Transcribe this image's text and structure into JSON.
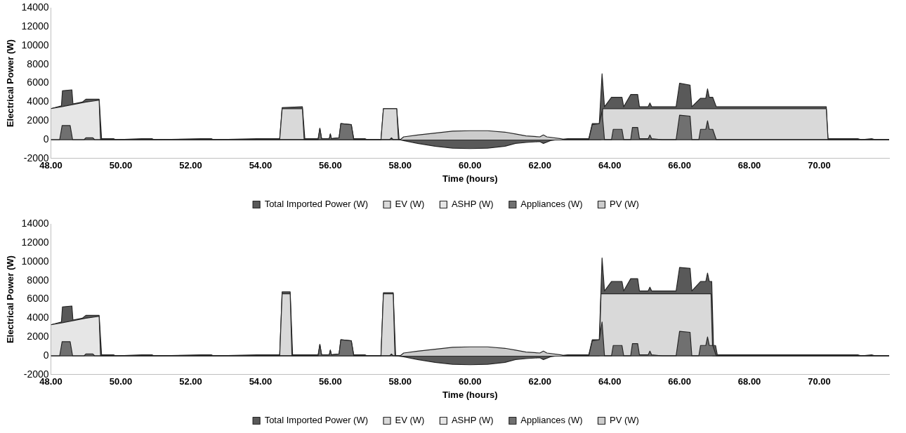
{
  "chart_data": [
    {
      "type": "area",
      "xlabel": "Time (hours)",
      "ylabel": "Electrical Power (W)",
      "xlim": [
        48,
        72
      ],
      "ylim": [
        -2000,
        14000
      ],
      "xticks": [
        {
          "value": 48,
          "label": "48.00"
        },
        {
          "value": 50,
          "label": "50.00"
        },
        {
          "value": 52,
          "label": "52.00"
        },
        {
          "value": 54,
          "label": "54.00"
        },
        {
          "value": 56,
          "label": "56.00"
        },
        {
          "value": 58,
          "label": "58.00"
        },
        {
          "value": 60,
          "label": "60.00"
        },
        {
          "value": 62,
          "label": "62.00"
        },
        {
          "value": 64,
          "label": "64.00"
        },
        {
          "value": 66,
          "label": "66.00"
        },
        {
          "value": 68,
          "label": "68.00"
        },
        {
          "value": 70,
          "label": "70.00"
        }
      ],
      "yticks": [
        -2000,
        0,
        2000,
        4000,
        6000,
        8000,
        10000,
        12000,
        14000
      ],
      "grid": false,
      "legend": "bottom",
      "marker": "none",
      "series": [
        {
          "name": "Total Imported Power (W)",
          "color": "#595959",
          "x": [
            48,
            48.3,
            48.33,
            48.6,
            48.63,
            48.9,
            49.0,
            49.38,
            49.45,
            49.8,
            49.85,
            50.6,
            50.9,
            50.95,
            52.3,
            52.6,
            52.65,
            53.9,
            54.2,
            54.55,
            54.62,
            55.2,
            55.27,
            55.65,
            55.7,
            55.75,
            55.97,
            56.0,
            56.03,
            56.25,
            56.3,
            56.6,
            56.67,
            57.0,
            57.05,
            57.45,
            57.52,
            57.9,
            57.97,
            58.1,
            58.5,
            59.0,
            59.5,
            60.0,
            60.5,
            61.0,
            61.3,
            61.6,
            62.0,
            62.1,
            62.3,
            62.5,
            62.8,
            63.4,
            63.5,
            63.7,
            63.78,
            63.85,
            64.05,
            64.35,
            64.4,
            64.6,
            64.8,
            64.85,
            65.1,
            65.15,
            65.2,
            65.9,
            66.0,
            66.3,
            66.35,
            66.6,
            66.75,
            66.8,
            66.85,
            66.95,
            67.05,
            70.2,
            70.25,
            71.1,
            71.2,
            71.5,
            71.6,
            72
          ],
          "values": [
            3300,
            3600,
            5200,
            5300,
            3800,
            4000,
            4300,
            4300,
            100,
            100,
            0,
            100,
            100,
            0,
            100,
            100,
            0,
            100,
            100,
            100,
            3400,
            3500,
            100,
            100,
            1200,
            100,
            100,
            600,
            100,
            200,
            1700,
            1600,
            100,
            100,
            0,
            0,
            3300,
            3300,
            0,
            -100,
            -400,
            -700,
            -900,
            -950,
            -900,
            -700,
            -400,
            -300,
            -200,
            -400,
            -100,
            0,
            100,
            100,
            1700,
            1700,
            7000,
            3500,
            4500,
            4500,
            3500,
            4800,
            4800,
            3500,
            3500,
            3900,
            3500,
            3500,
            6000,
            5800,
            3500,
            4400,
            4400,
            5400,
            4500,
            4500,
            3500,
            3500,
            100,
            100,
            0,
            100,
            0,
            0
          ]
        },
        {
          "name": "EV (W)",
          "color": "#d9d9d9",
          "x": [
            48,
            54.55,
            54.62,
            55.2,
            55.25,
            57.45,
            57.52,
            57.9,
            57.95,
            63.75,
            63.8,
            70.2,
            70.25,
            72
          ],
          "values": [
            0,
            0,
            3300,
            3300,
            0,
            0,
            3300,
            3300,
            0,
            0,
            3300,
            3300,
            0,
            0
          ]
        },
        {
          "name": "ASHP (W)",
          "color": "#e6e6e6",
          "x": [
            48,
            48.3,
            49.0,
            49.38,
            49.42,
            72
          ],
          "values": [
            3300,
            3500,
            4000,
            4200,
            0,
            0
          ]
        },
        {
          "name": "Appliances (W)",
          "color": "#707070",
          "x": [
            48,
            48.25,
            48.32,
            48.55,
            48.62,
            48.95,
            49.0,
            49.2,
            49.25,
            55.65,
            55.7,
            55.75,
            55.97,
            56.0,
            56.03,
            56.25,
            56.3,
            56.6,
            56.67,
            57.7,
            57.75,
            57.8,
            63.4,
            63.5,
            63.7,
            63.78,
            63.85,
            64.05,
            64.1,
            64.35,
            64.4,
            64.6,
            64.65,
            64.8,
            64.85,
            65.1,
            65.15,
            65.2,
            65.5,
            65.9,
            66.0,
            66.3,
            66.35,
            66.55,
            66.6,
            66.75,
            66.8,
            66.85,
            66.95,
            67.05,
            72
          ],
          "values": [
            0,
            0,
            1500,
            1500,
            0,
            0,
            200,
            200,
            0,
            0,
            1200,
            100,
            100,
            600,
            100,
            200,
            1700,
            1600,
            0,
            0,
            200,
            0,
            0,
            1600,
            1700,
            3000,
            0,
            0,
            1100,
            1100,
            0,
            0,
            1300,
            1300,
            100,
            100,
            500,
            100,
            0,
            0,
            2600,
            2500,
            0,
            0,
            1100,
            1100,
            2000,
            1100,
            1100,
            0,
            0
          ]
        },
        {
          "name": "PV (W)",
          "color": "#cccccc",
          "x": [
            48,
            58.0,
            58.1,
            58.5,
            59.0,
            59.5,
            60.0,
            60.5,
            61.0,
            61.3,
            61.6,
            62.0,
            62.1,
            62.2,
            62.6,
            62.7,
            72
          ],
          "values": [
            0,
            0,
            300,
            500,
            700,
            900,
            950,
            950,
            800,
            600,
            400,
            300,
            500,
            300,
            100,
            0,
            0
          ]
        }
      ]
    },
    {
      "type": "area",
      "xlabel": "Time (hours)",
      "ylabel": "Electrical Power (W)",
      "xlim": [
        48,
        72
      ],
      "ylim": [
        -2000,
        14000
      ],
      "xticks": [
        {
          "value": 48,
          "label": "48.00"
        },
        {
          "value": 50,
          "label": "50.00"
        },
        {
          "value": 52,
          "label": "52.00"
        },
        {
          "value": 54,
          "label": "54.00"
        },
        {
          "value": 56,
          "label": "56.00"
        },
        {
          "value": 58,
          "label": "58.00"
        },
        {
          "value": 60,
          "label": "60.00"
        },
        {
          "value": 62,
          "label": "62.00"
        },
        {
          "value": 64,
          "label": "64.00"
        },
        {
          "value": 66,
          "label": "66.00"
        },
        {
          "value": 68,
          "label": "68.00"
        },
        {
          "value": 70,
          "label": "70.00"
        }
      ],
      "yticks": [
        -2000,
        0,
        2000,
        4000,
        6000,
        8000,
        10000,
        12000,
        14000
      ],
      "grid": false,
      "legend": "bottom",
      "marker": "none",
      "series": [
        {
          "name": "Total Imported Power (W)",
          "color": "#595959",
          "x": [
            48,
            48.3,
            48.33,
            48.6,
            48.63,
            48.9,
            49.0,
            49.38,
            49.45,
            49.8,
            49.85,
            50.6,
            50.9,
            50.95,
            52.3,
            52.6,
            52.65,
            53.9,
            54.2,
            54.55,
            54.62,
            54.85,
            54.92,
            55.65,
            55.7,
            55.75,
            55.97,
            56.0,
            56.03,
            56.25,
            56.3,
            56.6,
            56.67,
            57.0,
            57.05,
            57.45,
            57.52,
            57.8,
            57.87,
            58.1,
            58.5,
            59.0,
            59.5,
            60.0,
            60.5,
            61.0,
            61.3,
            61.6,
            62.0,
            62.1,
            62.3,
            62.5,
            62.8,
            63.4,
            63.5,
            63.7,
            63.78,
            63.85,
            64.05,
            64.35,
            64.4,
            64.6,
            64.8,
            64.85,
            65.1,
            65.15,
            65.2,
            65.9,
            66.0,
            66.3,
            66.35,
            66.6,
            66.75,
            66.8,
            66.85,
            66.92,
            66.97,
            67.03,
            67.08,
            70.2,
            70.3,
            71.1,
            71.2,
            71.5,
            71.6,
            72
          ],
          "values": [
            3300,
            3600,
            5200,
            5300,
            3800,
            4000,
            4300,
            4300,
            100,
            100,
            0,
            100,
            100,
            0,
            100,
            100,
            0,
            100,
            100,
            100,
            6800,
            6800,
            100,
            100,
            1200,
            100,
            100,
            600,
            100,
            200,
            1700,
            1600,
            100,
            100,
            0,
            0,
            6700,
            6700,
            0,
            -100,
            -400,
            -700,
            -900,
            -950,
            -900,
            -700,
            -400,
            -300,
            -200,
            -400,
            -100,
            0,
            100,
            100,
            1700,
            1700,
            10400,
            6900,
            7900,
            7900,
            6900,
            8200,
            8200,
            6900,
            6900,
            7300,
            6900,
            6900,
            9400,
            9300,
            6900,
            7900,
            7900,
            8800,
            7900,
            7900,
            1100,
            1100,
            100,
            100,
            100,
            100,
            0,
            100,
            0,
            0
          ]
        },
        {
          "name": "EV (W)",
          "color": "#d9d9d9",
          "x": [
            48,
            54.55,
            54.62,
            54.85,
            54.9,
            57.45,
            57.52,
            57.8,
            57.85,
            63.7,
            63.75,
            66.9,
            66.95,
            72
          ],
          "values": [
            0,
            0,
            6600,
            6600,
            0,
            0,
            6600,
            6600,
            0,
            0,
            6600,
            6600,
            0,
            0
          ]
        },
        {
          "name": "ASHP (W)",
          "color": "#e6e6e6",
          "x": [
            48,
            48.3,
            49.0,
            49.38,
            49.42,
            72
          ],
          "values": [
            3300,
            3500,
            4000,
            4200,
            0,
            0
          ]
        },
        {
          "name": "Appliances (W)",
          "color": "#707070",
          "x": [
            48,
            48.25,
            48.32,
            48.55,
            48.62,
            48.95,
            49.0,
            49.2,
            49.25,
            55.65,
            55.7,
            55.75,
            55.97,
            56.0,
            56.03,
            56.25,
            56.3,
            56.6,
            56.67,
            57.7,
            57.75,
            57.8,
            63.4,
            63.5,
            63.7,
            63.78,
            63.85,
            64.05,
            64.1,
            64.35,
            64.4,
            64.6,
            64.65,
            64.8,
            64.85,
            65.1,
            65.15,
            65.2,
            65.5,
            65.9,
            66.0,
            66.3,
            66.35,
            66.55,
            66.6,
            66.75,
            66.8,
            66.85,
            66.95,
            67.05,
            72
          ],
          "values": [
            0,
            0,
            1500,
            1500,
            0,
            0,
            200,
            200,
            0,
            0,
            1200,
            100,
            100,
            600,
            100,
            200,
            1700,
            1600,
            0,
            0,
            200,
            0,
            0,
            1600,
            1700,
            3600,
            0,
            0,
            1100,
            1100,
            0,
            0,
            1300,
            1300,
            100,
            100,
            500,
            100,
            0,
            0,
            2600,
            2500,
            0,
            0,
            1100,
            1100,
            2000,
            1100,
            1100,
            0,
            0
          ]
        },
        {
          "name": "PV (W)",
          "color": "#cccccc",
          "x": [
            48,
            58.0,
            58.1,
            58.5,
            59.0,
            59.5,
            60.0,
            60.5,
            61.0,
            61.3,
            61.6,
            62.0,
            62.1,
            62.2,
            62.6,
            62.7,
            72
          ],
          "values": [
            0,
            0,
            300,
            500,
            700,
            900,
            950,
            950,
            800,
            600,
            400,
            300,
            500,
            300,
            100,
            0,
            0
          ]
        }
      ]
    }
  ]
}
